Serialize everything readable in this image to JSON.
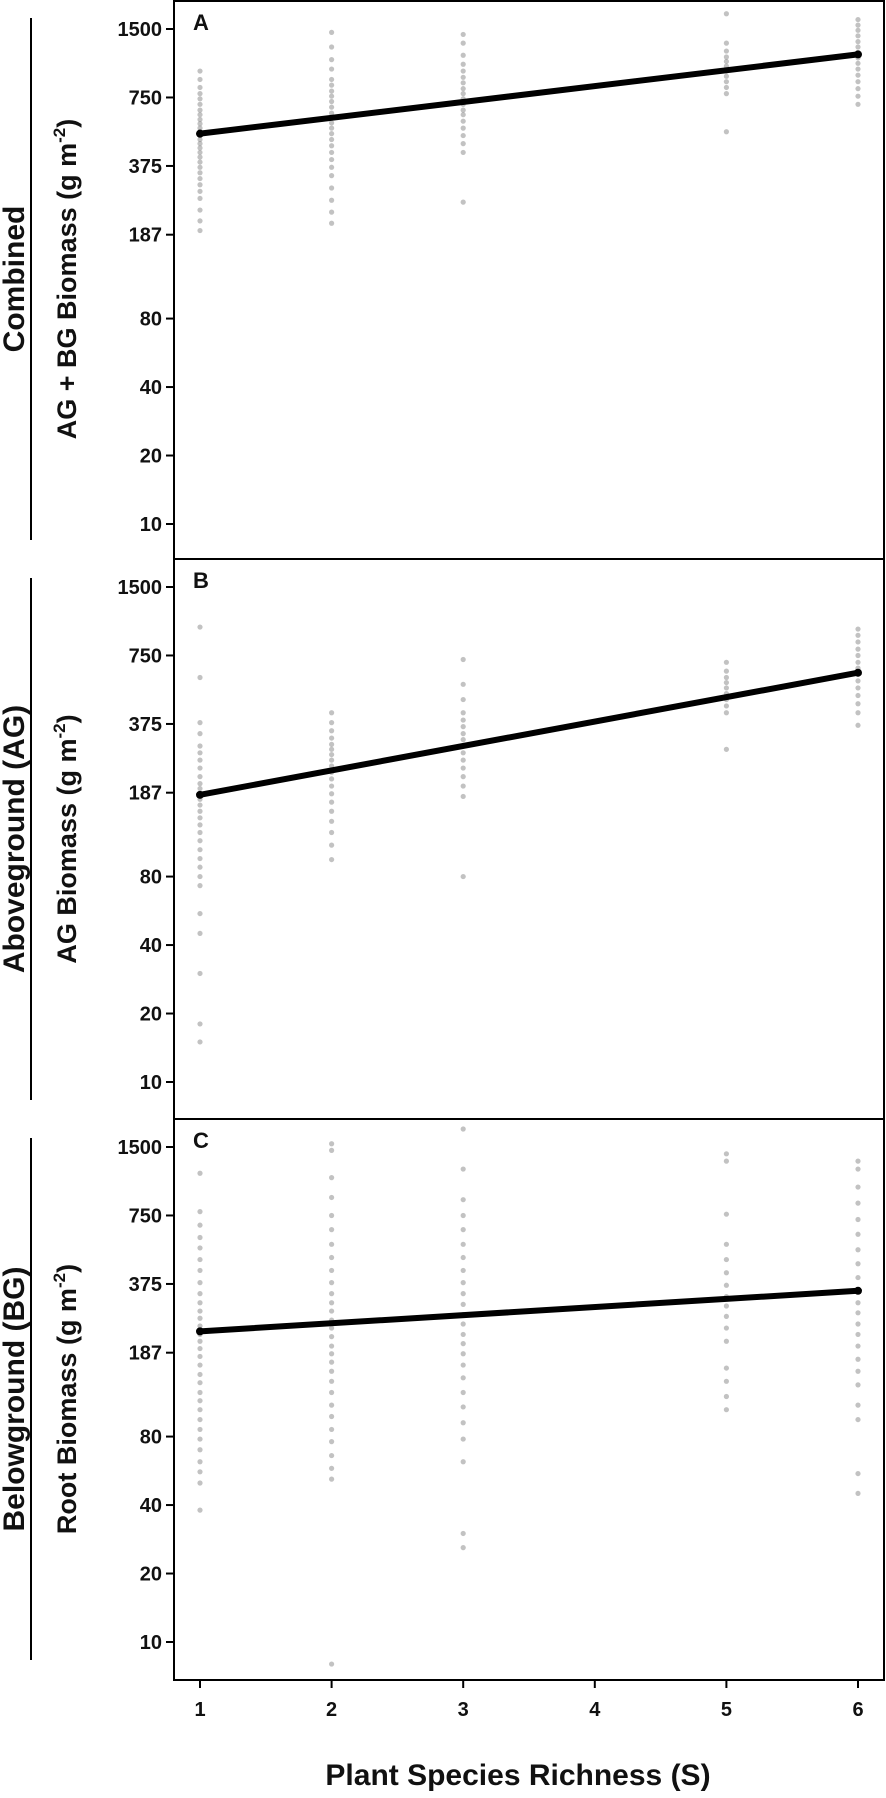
{
  "chart_data": {
    "type": "scatter",
    "y_scale": "log",
    "x_ticks": [
      1,
      2,
      3,
      4,
      5,
      6
    ],
    "y_ticks": [
      10,
      20,
      40,
      80,
      187,
      375,
      750,
      1500
    ],
    "xlabel": "Plant Species Richness (S)",
    "colors": {
      "points": "#777777",
      "fit": "#000000",
      "frame": "#000000"
    },
    "panels": [
      {
        "letter": "A",
        "group_label": "Combined",
        "ylabel": "AG + BG Biomass (g m",
        "ylabel_sup": "-2",
        "ylabel_close": ")",
        "fit": {
          "x": [
            1,
            6
          ],
          "y": [
            520,
            1160
          ]
        },
        "points": [
          {
            "x": 1,
            "y": [
              195,
              215,
              240,
              270,
              290,
              310,
              330,
              350,
              370,
              390,
              410,
              430,
              450,
              470,
              490,
              510,
              530,
              550,
              575,
              600,
              630,
              660,
              700,
              740,
              780,
              830,
              900,
              980
            ]
          },
          {
            "x": 2,
            "y": [
              210,
              235,
              265,
              300,
              340,
              370,
              400,
              430,
              460,
              490,
              520,
              550,
              580,
              610,
              640,
              680,
              720,
              760,
              800,
              850,
              900,
              1000,
              1100,
              1250,
              1450
            ]
          },
          {
            "x": 3,
            "y": [
              260,
              430,
              470,
              510,
              550,
              590,
              630,
              660,
              700,
              740,
              780,
              820,
              870,
              920,
              980,
              1050,
              1150,
              1300,
              1420
            ]
          },
          {
            "x": 5,
            "y": [
              530,
              780,
              830,
              880,
              930,
              980,
              1030,
              1080,
              1130,
              1200,
              1300,
              1750
            ]
          },
          {
            "x": 6,
            "y": [
              700,
              760,
              820,
              880,
              940,
              1000,
              1060,
              1120,
              1180,
              1250,
              1320,
              1400,
              1480,
              1560,
              1650
            ]
          }
        ]
      },
      {
        "letter": "B",
        "group_label": "Aboveground (AG)",
        "ylabel": "AG Biomass (g m",
        "ylabel_sup": "-2",
        "ylabel_close": ")",
        "fit": {
          "x": [
            1,
            6
          ],
          "y": [
            183,
            630
          ]
        },
        "points": [
          {
            "x": 1,
            "y": [
              15,
              18,
              30,
              45,
              55,
              73,
              80,
              88,
              96,
              105,
              115,
              125,
              135,
              145,
              155,
              165,
              175,
              185,
              195,
              205,
              220,
              240,
              260,
              280,
              300,
              340,
              380,
              600,
              1000
            ]
          },
          {
            "x": 2,
            "y": [
              95,
              110,
              125,
              140,
              155,
              170,
              185,
              200,
              215,
              230,
              245,
              260,
              275,
              290,
              305,
              325,
              350,
              380,
              420
            ]
          },
          {
            "x": 3,
            "y": [
              80,
              180,
              200,
              220,
              240,
              260,
              280,
              300,
              320,
              340,
              365,
              390,
              420,
              480,
              560,
              720
            ]
          },
          {
            "x": 5,
            "y": [
              290,
              420,
              450,
              480,
              510,
              540,
              570,
              600,
              640,
              700
            ]
          },
          {
            "x": 6,
            "y": [
              370,
              420,
              460,
              500,
              540,
              580,
              620,
              660,
              700,
              750,
              800,
              860,
              920,
              980
            ]
          }
        ]
      },
      {
        "letter": "C",
        "group_label": "Belowground (BG)",
        "ylabel": "Root Biomass (g m",
        "ylabel_sup": "-2",
        "ylabel_close": ")",
        "fit": {
          "x": [
            1,
            6
          ],
          "y": [
            232,
            350
          ]
        },
        "points": [
          {
            "x": 1,
            "y": [
              38,
              50,
              56,
              62,
              70,
              78,
              86,
              95,
              105,
              115,
              125,
              138,
              150,
              165,
              180,
              195,
              210,
              225,
              245,
              265,
              285,
              310,
              340,
              380,
              430,
              480,
              540,
              600,
              680,
              780,
              1150
            ]
          },
          {
            "x": 2,
            "y": [
              8,
              52,
              58,
              66,
              76,
              86,
              98,
              110,
              125,
              140,
              155,
              170,
              185,
              200,
              220,
              240,
              260,
              285,
              310,
              340,
              380,
              430,
              490,
              560,
              650,
              750,
              900,
              1100,
              1450,
              1550
            ]
          },
          {
            "x": 3,
            "y": [
              26,
              30,
              62,
              78,
              92,
              108,
              125,
              145,
              165,
              185,
              205,
              225,
              250,
              275,
              305,
              340,
              380,
              430,
              490,
              560,
              650,
              750,
              880,
              1200,
              1800
            ]
          },
          {
            "x": 5,
            "y": [
              105,
              120,
              140,
              160,
              210,
              240,
              270,
              300,
              330,
              370,
              420,
              480,
              560,
              760,
              1300,
              1400
            ]
          },
          {
            "x": 6,
            "y": [
              45,
              55,
              95,
              110,
              135,
              155,
              175,
              200,
              225,
              250,
              280,
              310,
              350,
              400,
              460,
              530,
              620,
              720,
              850,
              1000,
              1200,
              1300
            ]
          }
        ]
      }
    ]
  }
}
